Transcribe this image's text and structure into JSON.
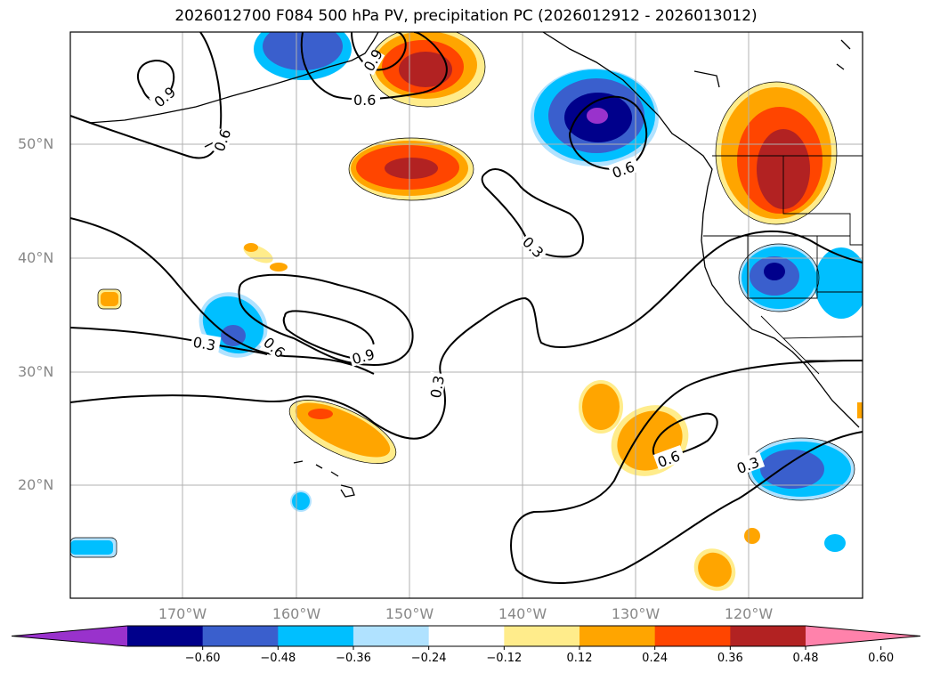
{
  "title": "2026012700 F084 500 hPa PV, precipitation PC (2026012912 - 2026013012)",
  "lat_labels": [
    "50°N",
    "40°N",
    "30°N",
    "20°N"
  ],
  "lon_labels": [
    "170°W",
    "160°W",
    "150°W",
    "140°W",
    "130°W",
    "120°W"
  ],
  "contour_labels": [
    "0.9",
    "0.6",
    "0.9",
    "0.6",
    "0.6",
    "0.6",
    "0.3",
    "0.3",
    "0.6",
    "0.9",
    "0.3",
    "0.6",
    "0.3"
  ],
  "colorbar": {
    "ticks": [
      "−0.60",
      "−0.48",
      "−0.36",
      "−0.24",
      "−0.12",
      "0.12",
      "0.24",
      "0.36",
      "0.48",
      "0.60"
    ],
    "colors": [
      "#9932cc",
      "#00008b",
      "#3a5fcd",
      "#00bfff",
      "#b0e2ff",
      "#ffffff",
      "#ffec8b",
      "#ffa500",
      "#ff4500",
      "#b22222",
      "#ff82ab"
    ]
  },
  "colors": {
    "neg_strong": "#9932cc",
    "neg_dark": "#00008b",
    "neg_mid": "#3a5fcd",
    "neg_light": "#00bfff",
    "neg_pale": "#b0e2ff",
    "pos_pale": "#ffec8b",
    "pos_light": "#ffa500",
    "pos_mid": "#ff4500",
    "pos_dark": "#b22222",
    "pos_strong": "#ff82ab"
  }
}
